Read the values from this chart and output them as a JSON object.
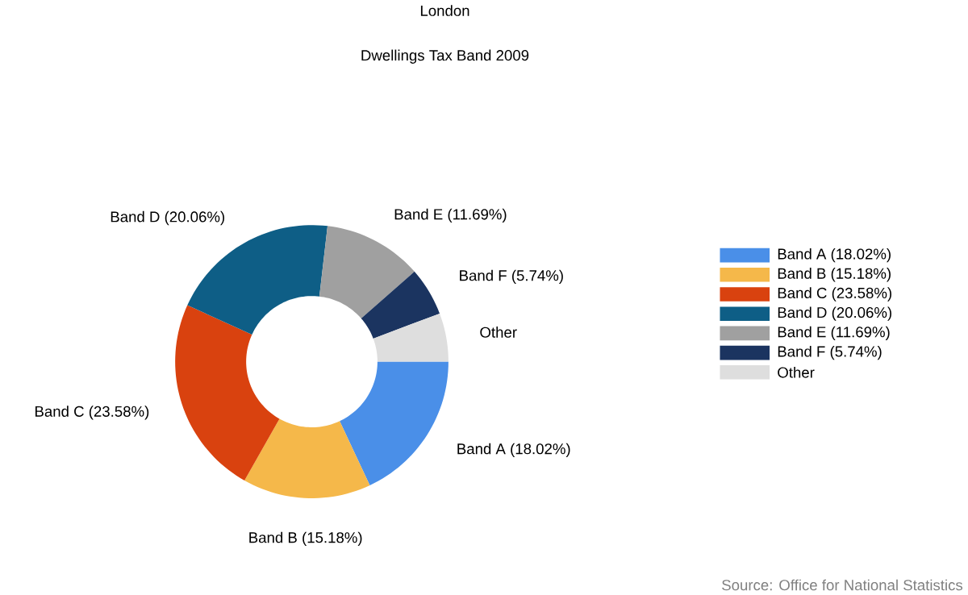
{
  "chart_data": {
    "type": "donut",
    "title": "London",
    "subtitle": "Dwellings Tax Band 2009",
    "categories": [
      "Band A (18.02%)",
      "Band B (15.18%)",
      "Band C (23.58%)",
      "Band D (20.06%)",
      "Band E (11.69%)",
      "Band F (5.74%)",
      "Other"
    ],
    "values": [
      18.02,
      15.18,
      23.58,
      20.06,
      11.69,
      5.74,
      5.73
    ],
    "colors": [
      "#4a8fe8",
      "#f5b84a",
      "#d9420f",
      "#0e5e86",
      "#a0a0a0",
      "#1b3460",
      "#dedede"
    ],
    "legend": "right",
    "annotations": [
      "Source: Office for National Statistics"
    ]
  }
}
